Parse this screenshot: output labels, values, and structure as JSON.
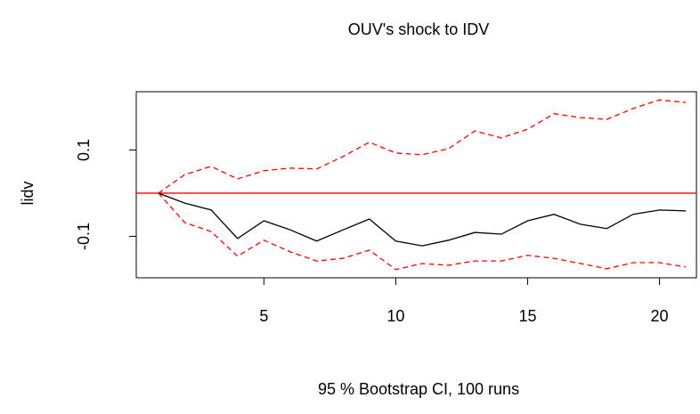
{
  "chart_data": {
    "type": "line",
    "title": "OUV's shock to IDV",
    "x_label": "95 % Bootstrap CI,  100 runs",
    "y_label": "lidv",
    "x": [
      1,
      2,
      3,
      4,
      5,
      6,
      7,
      8,
      9,
      10,
      11,
      12,
      13,
      14,
      15,
      16,
      17,
      18,
      19,
      20,
      21
    ],
    "series": [
      {
        "color": "#000000",
        "dash": false,
        "values": [
          0,
          -0.023,
          -0.039,
          -0.105,
          -0.064,
          -0.085,
          -0.111,
          -0.085,
          -0.06,
          -0.111,
          -0.122,
          -0.109,
          -0.091,
          -0.095,
          -0.064,
          -0.049,
          -0.072,
          -0.082,
          -0.049,
          -0.039,
          -0.041
        ]
      },
      {
        "color": "#ff0000",
        "dash": true,
        "values": [
          0,
          0.043,
          0.062,
          0.033,
          0.052,
          0.058,
          0.056,
          0.085,
          0.118,
          0.093,
          0.089,
          0.103,
          0.144,
          0.128,
          0.148,
          0.184,
          0.175,
          0.171,
          0.196,
          0.216,
          0.21
        ]
      },
      {
        "color": "#ff0000",
        "dash": true,
        "values": [
          0,
          -0.068,
          -0.089,
          -0.146,
          -0.109,
          -0.136,
          -0.157,
          -0.151,
          -0.132,
          -0.177,
          -0.163,
          -0.167,
          -0.157,
          -0.157,
          -0.144,
          -0.151,
          -0.163,
          -0.175,
          -0.161,
          -0.161,
          -0.171
        ]
      }
    ],
    "hline": 0,
    "hline_color": "#ff0000",
    "xlim": [
      0.16,
      21.4
    ],
    "xticks": [
      5,
      10,
      15,
      20
    ],
    "ylim": [
      -0.196,
      0.235
    ],
    "yticks": [
      -0.1,
      0.1
    ]
  }
}
